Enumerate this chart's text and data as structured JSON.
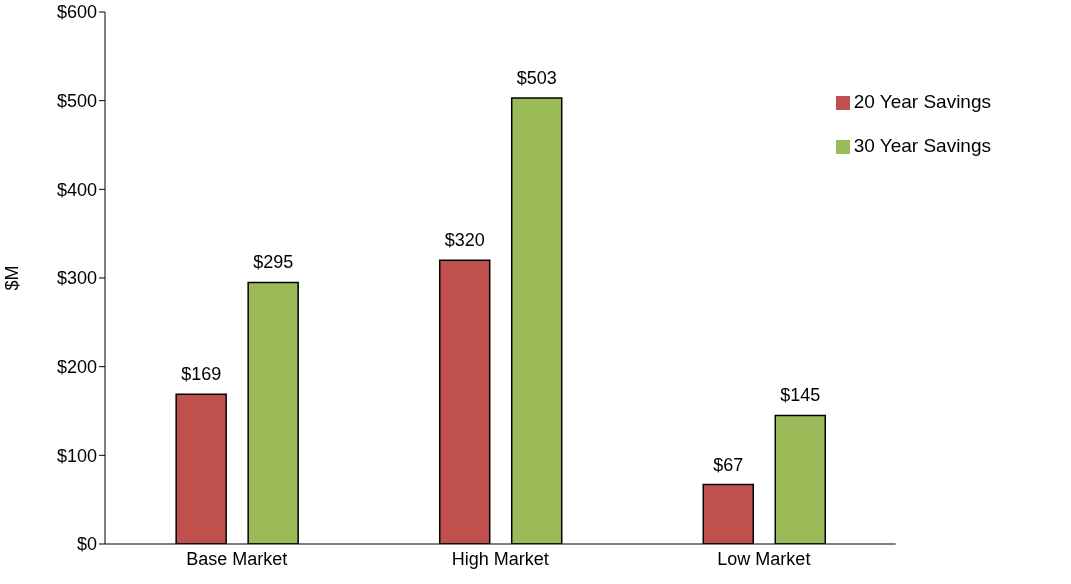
{
  "chart_data": {
    "type": "bar",
    "ylabel": "$M",
    "categories": [
      "Base Market",
      "High Market",
      "Low Market"
    ],
    "series": [
      {
        "name": "20 Year Savings",
        "color": "#c0504d",
        "values": [
          169,
          320,
          67
        ],
        "value_labels": [
          "$169",
          "$320",
          "$67"
        ]
      },
      {
        "name": "30 Year Savings",
        "color": "#9bbb59",
        "values": [
          295,
          503,
          145
        ],
        "value_labels": [
          "$295",
          "$503",
          "$145"
        ]
      }
    ],
    "ylim": [
      0,
      600
    ],
    "yticks": [
      {
        "value": 0,
        "label": "$0"
      },
      {
        "value": 100,
        "label": "$100"
      },
      {
        "value": 200,
        "label": "$200"
      },
      {
        "value": 300,
        "label": "$300"
      },
      {
        "value": 400,
        "label": "$400"
      },
      {
        "value": 500,
        "label": "$500"
      },
      {
        "value": 600,
        "label": "$600"
      }
    ],
    "grid": false,
    "legend": "top right"
  }
}
